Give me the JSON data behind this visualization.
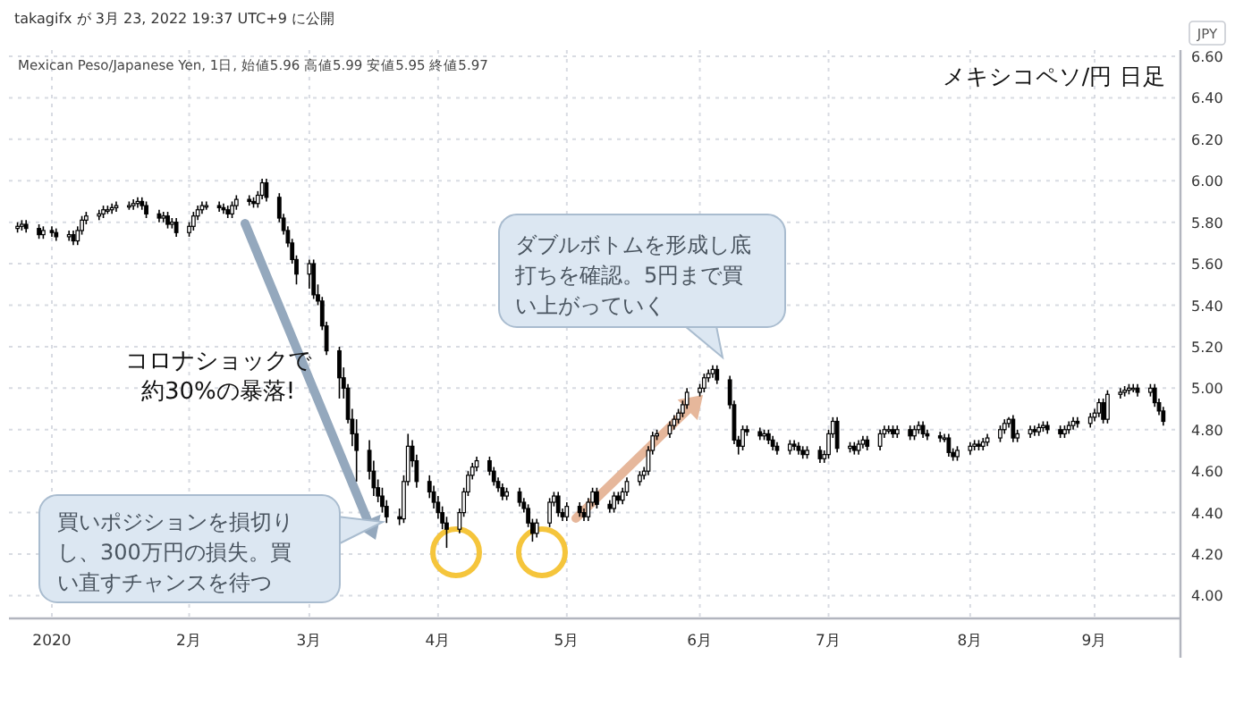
{
  "chart_data": {
    "type": "candlestick",
    "title": "メキシコペソ/円 日足",
    "subtitle": "Mexican Peso/Japanese Yen, 1日, 始値5.96 高値5.99 安値5.95 終値5.97",
    "ylabel": "JPY",
    "annotations": [
      "takagifx が 3月 23, 2022 19:37 UTC+9 に公開",
      "コロナショックで約30%の暴落!",
      "買いポジションを損切りし、300万円の損失。買い直すチャンスを待つ",
      "ダブルボトムを形成し底打ちを確認。5円まで買い上がっていく"
    ],
    "grid": true,
    "ylim": [
      3.89,
      6.63
    ],
    "yticks": [
      {
        "value": 4,
        "label": "4.00"
      },
      {
        "value": 4.2,
        "label": "4.20"
      },
      {
        "value": 4.4,
        "label": "4.40"
      },
      {
        "value": 4.6,
        "label": "4.60"
      },
      {
        "value": 4.8,
        "label": "4.80"
      },
      {
        "value": 5,
        "label": "5.00"
      },
      {
        "value": 5.2,
        "label": "5.20"
      },
      {
        "value": 5.4,
        "label": "5.40"
      },
      {
        "value": 5.6,
        "label": "5.60"
      },
      {
        "value": 5.8,
        "label": "5.80"
      },
      {
        "value": 6,
        "label": "6.00"
      },
      {
        "value": 6.2,
        "label": "6.20"
      },
      {
        "value": 6.4,
        "label": "6.40"
      },
      {
        "value": 6.6,
        "label": "6.60"
      }
    ],
    "xlim": [
      "2019-12-23",
      "2020-09-21"
    ],
    "xticks": [
      {
        "value": "2020-01-02",
        "label": "2020"
      },
      {
        "value": "2020-02-03",
        "label": "2月"
      },
      {
        "value": "2020-03-02",
        "label": "3月"
      },
      {
        "value": "2020-04-01",
        "label": "4月"
      },
      {
        "value": "2020-05-01",
        "label": "5月"
      },
      {
        "value": "2020-06-01",
        "label": "6月"
      },
      {
        "value": "2020-07-01",
        "label": "7月"
      },
      {
        "value": "2020-08-03",
        "label": "8月"
      },
      {
        "value": "2020-09-01",
        "label": "9月"
      }
    ],
    "x": [
      "2019-12-25",
      "2019-12-26",
      "2019-12-27",
      "2019-12-30",
      "2019-12-31",
      "2020-01-02",
      "2020-01-03",
      "2020-01-06",
      "2020-01-07",
      "2020-01-08",
      "2020-01-09",
      "2020-01-10",
      "2020-01-13",
      "2020-01-14",
      "2020-01-15",
      "2020-01-16",
      "2020-01-17",
      "2020-01-20",
      "2020-01-21",
      "2020-01-22",
      "2020-01-23",
      "2020-01-24",
      "2020-01-27",
      "2020-01-28",
      "2020-01-29",
      "2020-01-30",
      "2020-01-31",
      "2020-02-03",
      "2020-02-04",
      "2020-02-05",
      "2020-02-06",
      "2020-02-07",
      "2020-02-10",
      "2020-02-11",
      "2020-02-12",
      "2020-02-13",
      "2020-02-14",
      "2020-02-17",
      "2020-02-18",
      "2020-02-19",
      "2020-02-20",
      "2020-02-21",
      "2020-02-24",
      "2020-02-25",
      "2020-02-26",
      "2020-02-27",
      "2020-02-28",
      "2020-03-02",
      "2020-03-03",
      "2020-03-04",
      "2020-03-05",
      "2020-03-06",
      "2020-03-09",
      "2020-03-10",
      "2020-03-11",
      "2020-03-12",
      "2020-03-13",
      "2020-03-16",
      "2020-03-17",
      "2020-03-18",
      "2020-03-19",
      "2020-03-20",
      "2020-03-23",
      "2020-03-24",
      "2020-03-25",
      "2020-03-26",
      "2020-03-27",
      "2020-03-30",
      "2020-03-31",
      "2020-04-01",
      "2020-04-02",
      "2020-04-03",
      "2020-04-06",
      "2020-04-07",
      "2020-04-08",
      "2020-04-09",
      "2020-04-10",
      "2020-04-13",
      "2020-04-14",
      "2020-04-15",
      "2020-04-16",
      "2020-04-17",
      "2020-04-20",
      "2020-04-21",
      "2020-04-22",
      "2020-04-23",
      "2020-04-24",
      "2020-04-27",
      "2020-04-28",
      "2020-04-29",
      "2020-04-30",
      "2020-05-01",
      "2020-05-04",
      "2020-05-05",
      "2020-05-06",
      "2020-05-07",
      "2020-05-08",
      "2020-05-11",
      "2020-05-12",
      "2020-05-13",
      "2020-05-14",
      "2020-05-15",
      "2020-05-18",
      "2020-05-19",
      "2020-05-20",
      "2020-05-21",
      "2020-05-22",
      "2020-05-25",
      "2020-05-26",
      "2020-05-27",
      "2020-05-28",
      "2020-05-29",
      "2020-06-01",
      "2020-06-02",
      "2020-06-03",
      "2020-06-04",
      "2020-06-05",
      "2020-06-08",
      "2020-06-09",
      "2020-06-10",
      "2020-06-11",
      "2020-06-12",
      "2020-06-15",
      "2020-06-16",
      "2020-06-17",
      "2020-06-18",
      "2020-06-19",
      "2020-06-22",
      "2020-06-23",
      "2020-06-24",
      "2020-06-25",
      "2020-06-26",
      "2020-06-29",
      "2020-06-30",
      "2020-07-01",
      "2020-07-02",
      "2020-07-03",
      "2020-07-06",
      "2020-07-07",
      "2020-07-08",
      "2020-07-09",
      "2020-07-10",
      "2020-07-13",
      "2020-07-14",
      "2020-07-15",
      "2020-07-16",
      "2020-07-17",
      "2020-07-20",
      "2020-07-21",
      "2020-07-22",
      "2020-07-23",
      "2020-07-24",
      "2020-07-27",
      "2020-07-28",
      "2020-07-29",
      "2020-07-30",
      "2020-07-31",
      "2020-08-03",
      "2020-08-04",
      "2020-08-05",
      "2020-08-06",
      "2020-08-07",
      "2020-08-10",
      "2020-08-11",
      "2020-08-12",
      "2020-08-13",
      "2020-08-14",
      "2020-08-17",
      "2020-08-18",
      "2020-08-19",
      "2020-08-20",
      "2020-08-21",
      "2020-08-24",
      "2020-08-25",
      "2020-08-26",
      "2020-08-27",
      "2020-08-28",
      "2020-08-31",
      "2020-09-01",
      "2020-09-02",
      "2020-09-03",
      "2020-09-04",
      "2020-09-07",
      "2020-09-08",
      "2020-09-09",
      "2020-09-10",
      "2020-09-11",
      "2020-09-14",
      "2020-09-15",
      "2020-09-16",
      "2020-09-17"
    ],
    "ohlc": [
      [
        5.77,
        5.8,
        5.75,
        5.78
      ],
      [
        5.78,
        5.81,
        5.76,
        5.79
      ],
      [
        5.79,
        5.81,
        5.75,
        5.77
      ],
      [
        5.77,
        5.79,
        5.72,
        5.74
      ],
      [
        5.74,
        5.78,
        5.72,
        5.76
      ],
      [
        5.76,
        5.78,
        5.73,
        5.75
      ],
      [
        5.75,
        5.77,
        5.71,
        5.73
      ],
      [
        5.73,
        5.76,
        5.71,
        5.74
      ],
      [
        5.74,
        5.76,
        5.69,
        5.71
      ],
      [
        5.71,
        5.78,
        5.69,
        5.76
      ],
      [
        5.76,
        5.83,
        5.74,
        5.81
      ],
      [
        5.81,
        5.85,
        5.79,
        5.83
      ],
      [
        5.83,
        5.86,
        5.81,
        5.84
      ],
      [
        5.84,
        5.88,
        5.82,
        5.86
      ],
      [
        5.86,
        5.88,
        5.84,
        5.86
      ],
      [
        5.86,
        5.89,
        5.84,
        5.87
      ],
      [
        5.87,
        5.9,
        5.85,
        5.88
      ],
      [
        5.88,
        5.9,
        5.86,
        5.88
      ],
      [
        5.88,
        5.91,
        5.86,
        5.89
      ],
      [
        5.89,
        5.92,
        5.87,
        5.9
      ],
      [
        5.9,
        5.92,
        5.86,
        5.88
      ],
      [
        5.88,
        5.9,
        5.82,
        5.84
      ],
      [
        5.84,
        5.86,
        5.8,
        5.82
      ],
      [
        5.82,
        5.85,
        5.8,
        5.83
      ],
      [
        5.83,
        5.85,
        5.77,
        5.79
      ],
      [
        5.79,
        5.82,
        5.77,
        5.8
      ],
      [
        5.8,
        5.82,
        5.73,
        5.75
      ],
      [
        5.75,
        5.8,
        5.73,
        5.78
      ],
      [
        5.78,
        5.85,
        5.76,
        5.83
      ],
      [
        5.83,
        5.88,
        5.81,
        5.86
      ],
      [
        5.86,
        5.9,
        5.84,
        5.88
      ],
      [
        5.88,
        5.9,
        5.86,
        5.88
      ],
      [
        5.88,
        5.9,
        5.85,
        5.87
      ],
      [
        5.87,
        5.89,
        5.84,
        5.86
      ],
      [
        5.86,
        5.88,
        5.82,
        5.84
      ],
      [
        5.84,
        5.9,
        5.82,
        5.88
      ],
      [
        5.88,
        5.93,
        5.86,
        5.91
      ],
      [
        5.91,
        5.93,
        5.88,
        5.9
      ],
      [
        5.9,
        5.92,
        5.87,
        5.89
      ],
      [
        5.89,
        5.95,
        5.87,
        5.93
      ],
      [
        5.93,
        6.01,
        5.91,
        5.99
      ],
      [
        5.99,
        6.01,
        5.9,
        5.92
      ],
      [
        5.92,
        5.94,
        5.8,
        5.82
      ],
      [
        5.82,
        5.84,
        5.74,
        5.76
      ],
      [
        5.76,
        5.78,
        5.68,
        5.7
      ],
      [
        5.7,
        5.72,
        5.6,
        5.62
      ],
      [
        5.62,
        5.64,
        5.5,
        5.55
      ],
      [
        5.55,
        5.62,
        5.48,
        5.6
      ],
      [
        5.6,
        5.62,
        5.43,
        5.45
      ],
      [
        5.45,
        5.5,
        5.4,
        5.42
      ],
      [
        5.42,
        5.44,
        5.28,
        5.3
      ],
      [
        5.3,
        5.32,
        5.16,
        5.18
      ],
      [
        5.18,
        5.2,
        4.95,
        5.05
      ],
      [
        5.05,
        5.1,
        4.95,
        5.0
      ],
      [
        5.0,
        5.02,
        4.83,
        4.85
      ],
      [
        4.85,
        4.9,
        4.72,
        4.78
      ],
      [
        4.78,
        4.85,
        4.55,
        4.7
      ],
      [
        4.7,
        4.75,
        4.56,
        4.6
      ],
      [
        4.6,
        4.65,
        4.48,
        4.52
      ],
      [
        4.52,
        4.56,
        4.45,
        4.48
      ],
      [
        4.48,
        4.52,
        4.4,
        4.43
      ],
      [
        4.43,
        4.46,
        4.35,
        4.38
      ],
      [
        4.38,
        4.42,
        4.34,
        4.37
      ],
      [
        4.37,
        4.58,
        4.35,
        4.55
      ],
      [
        4.55,
        4.78,
        4.53,
        4.72
      ],
      [
        4.72,
        4.75,
        4.62,
        4.65
      ],
      [
        4.65,
        4.68,
        4.52,
        4.55
      ],
      [
        4.55,
        4.58,
        4.47,
        4.5
      ],
      [
        4.5,
        4.53,
        4.42,
        4.45
      ],
      [
        4.45,
        4.48,
        4.37,
        4.4
      ],
      [
        4.4,
        4.43,
        4.32,
        4.35
      ],
      [
        4.35,
        4.38,
        4.23,
        4.32
      ],
      [
        4.32,
        4.42,
        4.3,
        4.4
      ],
      [
        4.4,
        4.52,
        4.38,
        4.5
      ],
      [
        4.5,
        4.6,
        4.48,
        4.58
      ],
      [
        4.58,
        4.64,
        4.56,
        4.62
      ],
      [
        4.62,
        4.67,
        4.6,
        4.65
      ],
      [
        4.65,
        4.67,
        4.58,
        4.6
      ],
      [
        4.6,
        4.62,
        4.53,
        4.55
      ],
      [
        4.55,
        4.57,
        4.5,
        4.52
      ],
      [
        4.52,
        4.54,
        4.46,
        4.48
      ],
      [
        4.48,
        4.52,
        4.46,
        4.5
      ],
      [
        4.5,
        4.52,
        4.43,
        4.45
      ],
      [
        4.45,
        4.47,
        4.4,
        4.42
      ],
      [
        4.42,
        4.44,
        4.33,
        4.35
      ],
      [
        4.35,
        4.37,
        4.26,
        4.3
      ],
      [
        4.3,
        4.37,
        4.28,
        4.35
      ],
      [
        4.35,
        4.47,
        4.33,
        4.45
      ],
      [
        4.45,
        4.5,
        4.43,
        4.48
      ],
      [
        4.48,
        4.5,
        4.38,
        4.4
      ],
      [
        4.4,
        4.42,
        4.36,
        4.38
      ],
      [
        4.38,
        4.45,
        4.36,
        4.43
      ],
      [
        4.43,
        4.45,
        4.38,
        4.4
      ],
      [
        4.4,
        4.42,
        4.36,
        4.38
      ],
      [
        4.38,
        4.47,
        4.36,
        4.45
      ],
      [
        4.45,
        4.52,
        4.43,
        4.5
      ],
      [
        4.5,
        4.52,
        4.42,
        4.44
      ],
      [
        4.44,
        4.46,
        4.4,
        4.42
      ],
      [
        4.42,
        4.5,
        4.4,
        4.48
      ],
      [
        4.48,
        4.5,
        4.44,
        4.46
      ],
      [
        4.46,
        4.52,
        4.44,
        4.5
      ],
      [
        4.5,
        4.57,
        4.48,
        4.55
      ],
      [
        4.55,
        4.6,
        4.53,
        4.58
      ],
      [
        4.58,
        4.62,
        4.56,
        4.6
      ],
      [
        4.6,
        4.72,
        4.58,
        4.7
      ],
      [
        4.7,
        4.79,
        4.68,
        4.77
      ],
      [
        4.77,
        4.8,
        4.75,
        4.78
      ],
      [
        4.78,
        4.84,
        4.76,
        4.82
      ],
      [
        4.82,
        4.87,
        4.8,
        4.85
      ],
      [
        4.85,
        4.9,
        4.83,
        4.88
      ],
      [
        4.88,
        4.94,
        4.86,
        4.92
      ],
      [
        4.92,
        5.0,
        4.9,
        4.98
      ],
      [
        4.98,
        5.02,
        4.96,
        5.0
      ],
      [
        5.0,
        5.07,
        4.98,
        5.05
      ],
      [
        5.05,
        5.09,
        5.03,
        5.07
      ],
      [
        5.07,
        5.11,
        5.05,
        5.09
      ],
      [
        5.09,
        5.11,
        5.02,
        5.04
      ],
      [
        5.04,
        5.06,
        4.9,
        4.92
      ],
      [
        4.92,
        4.94,
        4.73,
        4.75
      ],
      [
        4.75,
        4.77,
        4.68,
        4.72
      ],
      [
        4.72,
        4.82,
        4.7,
        4.8
      ],
      [
        4.8,
        4.82,
        4.77,
        4.79
      ],
      [
        4.79,
        4.81,
        4.75,
        4.77
      ],
      [
        4.77,
        4.8,
        4.75,
        4.78
      ],
      [
        4.78,
        4.8,
        4.73,
        4.75
      ],
      [
        4.75,
        4.77,
        4.7,
        4.72
      ],
      [
        4.72,
        4.74,
        4.68,
        4.7
      ],
      [
        4.7,
        4.75,
        4.68,
        4.73
      ],
      [
        4.73,
        4.75,
        4.7,
        4.72
      ],
      [
        4.72,
        4.74,
        4.68,
        4.7
      ],
      [
        4.7,
        4.72,
        4.66,
        4.68
      ],
      [
        4.68,
        4.72,
        4.66,
        4.7
      ],
      [
        4.7,
        4.72,
        4.64,
        4.66
      ],
      [
        4.66,
        4.7,
        4.64,
        4.68
      ],
      [
        4.68,
        4.8,
        4.66,
        4.78
      ],
      [
        4.78,
        4.86,
        4.76,
        4.84
      ],
      [
        4.84,
        4.86,
        4.69,
        4.71
      ],
      [
        4.71,
        4.74,
        4.69,
        4.72
      ],
      [
        4.72,
        4.74,
        4.68,
        4.7
      ],
      [
        4.7,
        4.75,
        4.68,
        4.73
      ],
      [
        4.73,
        4.77,
        4.71,
        4.75
      ],
      [
        4.75,
        4.77,
        4.7,
        4.72
      ],
      [
        4.72,
        4.8,
        4.7,
        4.78
      ],
      [
        4.78,
        4.82,
        4.76,
        4.8
      ],
      [
        4.8,
        4.82,
        4.78,
        4.8
      ],
      [
        4.8,
        4.82,
        4.76,
        4.78
      ],
      [
        4.78,
        4.82,
        4.76,
        4.8
      ],
      [
        4.8,
        4.82,
        4.75,
        4.77
      ],
      [
        4.77,
        4.82,
        4.75,
        4.8
      ],
      [
        4.8,
        4.84,
        4.78,
        4.82
      ],
      [
        4.82,
        4.84,
        4.76,
        4.78
      ],
      [
        4.78,
        4.8,
        4.75,
        4.77
      ],
      [
        4.77,
        4.79,
        4.74,
        4.76
      ],
      [
        4.76,
        4.78,
        4.74,
        4.76
      ],
      [
        4.76,
        4.78,
        4.67,
        4.69
      ],
      [
        4.69,
        4.71,
        4.65,
        4.67
      ],
      [
        4.67,
        4.72,
        4.65,
        4.7
      ],
      [
        4.7,
        4.74,
        4.68,
        4.72
      ],
      [
        4.72,
        4.75,
        4.7,
        4.73
      ],
      [
        4.73,
        4.75,
        4.7,
        4.72
      ],
      [
        4.72,
        4.76,
        4.7,
        4.74
      ],
      [
        4.74,
        4.78,
        4.72,
        4.76
      ],
      [
        4.76,
        4.82,
        4.74,
        4.8
      ],
      [
        4.8,
        4.85,
        4.78,
        4.83
      ],
      [
        4.83,
        4.86,
        4.81,
        4.85
      ],
      [
        4.85,
        4.87,
        4.74,
        4.76
      ],
      [
        4.76,
        4.8,
        4.74,
        4.78
      ],
      [
        4.78,
        4.82,
        4.76,
        4.8
      ],
      [
        4.8,
        4.82,
        4.77,
        4.79
      ],
      [
        4.79,
        4.83,
        4.77,
        4.81
      ],
      [
        4.81,
        4.84,
        4.79,
        4.82
      ],
      [
        4.82,
        4.84,
        4.78,
        4.8
      ],
      [
        4.8,
        4.82,
        4.76,
        4.78
      ],
      [
        4.78,
        4.82,
        4.76,
        4.8
      ],
      [
        4.8,
        4.84,
        4.78,
        4.82
      ],
      [
        4.82,
        4.86,
        4.8,
        4.84
      ],
      [
        4.84,
        4.86,
        4.81,
        4.83
      ],
      [
        4.83,
        4.88,
        4.81,
        4.86
      ],
      [
        4.86,
        4.9,
        4.84,
        4.88
      ],
      [
        4.88,
        4.95,
        4.86,
        4.93
      ],
      [
        4.93,
        4.95,
        4.83,
        4.85
      ],
      [
        4.85,
        4.99,
        4.83,
        4.97
      ],
      [
        4.97,
        5.0,
        4.95,
        4.98
      ],
      [
        4.98,
        5.01,
        4.96,
        4.99
      ],
      [
        4.99,
        5.02,
        4.97,
        5.0
      ],
      [
        5.0,
        5.02,
        4.98,
        5.0
      ],
      [
        5.0,
        5.02,
        4.96,
        4.98
      ],
      [
        4.98,
        5.02,
        4.96,
        5.0
      ],
      [
        5.0,
        5.02,
        4.91,
        4.93
      ],
      [
        4.93,
        4.95,
        4.87,
        4.89
      ],
      [
        4.89,
        4.91,
        4.82,
        4.84
      ]
    ]
  }
}
